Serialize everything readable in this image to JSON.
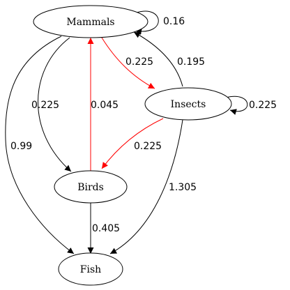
{
  "nodes": [
    {
      "id": "mammals",
      "label": "Mammals"
    },
    {
      "id": "insects",
      "label": "Insects"
    },
    {
      "id": "birds",
      "label": "Birds"
    },
    {
      "id": "fish",
      "label": "Fish"
    }
  ],
  "edges": [
    {
      "id": "mammals-mammals",
      "from": "Mammals",
      "to": "Mammals",
      "label": "0.16",
      "color": "#000000"
    },
    {
      "id": "mammals-insects",
      "from": "Mammals",
      "to": "Insects",
      "label": "0.225",
      "color": "#ff0000"
    },
    {
      "id": "insects-mammals",
      "from": "Insects",
      "to": "Mammals",
      "label": "0.195",
      "color": "#000000"
    },
    {
      "id": "insects-insects",
      "from": "Insects",
      "to": "Insects",
      "label": "0.225",
      "color": "#000000"
    },
    {
      "id": "mammals-birds",
      "from": "Mammals",
      "to": "Birds",
      "label": "0.225",
      "color": "#000000"
    },
    {
      "id": "birds-mammals",
      "from": "Birds",
      "to": "Mammals",
      "label": "0.045",
      "color": "#ff0000"
    },
    {
      "id": "insects-birds",
      "from": "Insects",
      "to": "Birds",
      "label": "0.225",
      "color": "#ff0000"
    },
    {
      "id": "mammals-fish",
      "from": "Mammals",
      "to": "Fish",
      "label": "0.99",
      "color": "#000000"
    },
    {
      "id": "insects-fish",
      "from": "Insects",
      "to": "Fish",
      "label": "1.305",
      "color": "#000000"
    },
    {
      "id": "birds-fish",
      "from": "Birds",
      "to": "Fish",
      "label": "0.405",
      "color": "#000000"
    }
  ]
}
